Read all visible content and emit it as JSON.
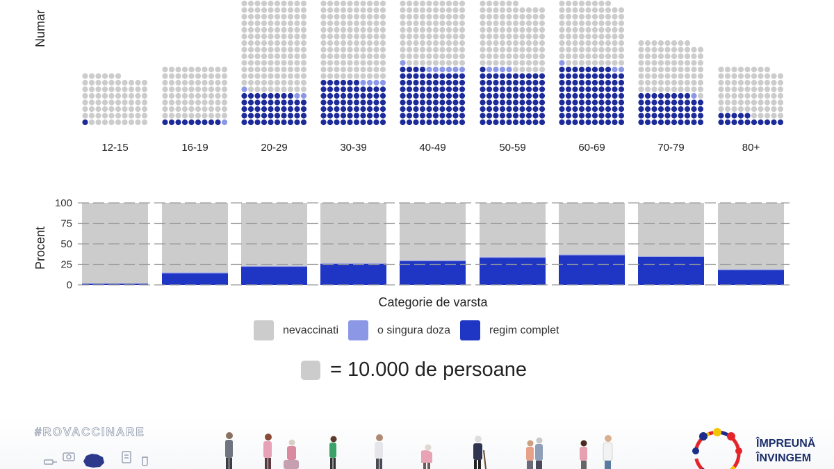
{
  "chart_data": [
    {
      "type": "waffle",
      "ylabel": "Numar",
      "categories": [
        "12-15",
        "16-19",
        "20-29",
        "30-39",
        "40-49",
        "50-59",
        "60-69",
        "70-79",
        "80+"
      ],
      "unit_persons": 10000,
      "series": [
        {
          "name": "nevaccinati",
          "values": [
            75,
            80,
            160,
            140,
            101,
            101,
            97,
            79,
            73
          ]
        },
        {
          "name": "o singura doza",
          "values": [
            0,
            1,
            3,
            4,
            7,
            4,
            3,
            1,
            0
          ]
        },
        {
          "name": "regim complet",
          "values": [
            1,
            9,
            48,
            66,
            84,
            81,
            88,
            48,
            15
          ]
        }
      ]
    },
    {
      "type": "bar",
      "stacked": true,
      "xlabel": "Categorie de varsta",
      "ylabel": "Procent",
      "categories": [
        "12-15",
        "16-19",
        "20-29",
        "30-39",
        "40-49",
        "50-59",
        "60-69",
        "70-79",
        "80+"
      ],
      "ylim": [
        0,
        100
      ],
      "yticks": [
        0,
        25,
        50,
        75,
        100
      ],
      "series": [
        {
          "name": "regim complet",
          "values": [
            1.5,
            14,
            22,
            25.5,
            29,
            33,
            36,
            34,
            18
          ]
        },
        {
          "name": "o singura doza",
          "values": [
            0,
            1,
            1,
            1,
            1,
            1,
            1,
            1,
            1
          ]
        },
        {
          "name": "nevaccinati",
          "values": [
            98.5,
            85,
            77,
            73.5,
            70,
            66,
            63,
            65,
            81
          ]
        }
      ],
      "grid": true,
      "legend": "bottom"
    }
  ],
  "colors": {
    "nevaccinati": "#cccccc",
    "singura": "#8c98e6",
    "complet": "#1f36c4",
    "waffle_complet": "#1d2b9a",
    "bar_grid": "#999999"
  },
  "legend": {
    "items": [
      {
        "label": "nevaccinati",
        "color": "#cccccc"
      },
      {
        "label": "o singura doza",
        "color": "#8c98e6"
      },
      {
        "label": "regim complet",
        "color": "#1f36c4"
      }
    ]
  },
  "scale_note": "= 10.000 de persoane",
  "footer": {
    "hashtag": "#ROVACCINARE",
    "brand_line1": "ÎMPREUNĂ",
    "brand_line2": "ÎNVINGEM"
  }
}
